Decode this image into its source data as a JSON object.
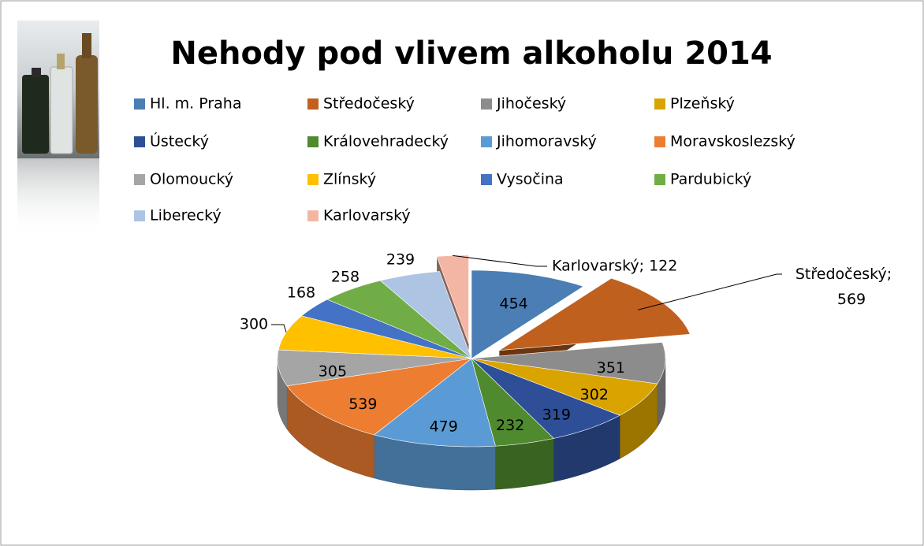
{
  "chart_data": {
    "type": "pie3d",
    "title": "Nehody pod vlivem alkoholu 2014",
    "categories": [
      "Hl. m. Praha",
      "Středočeský",
      "Jihočeský",
      "Plzeňský",
      "Ústecký",
      "Královehradecký",
      "Jihomoravský",
      "Moravskoslezský",
      "Olomoucký",
      "Zlínský",
      "Vysočina",
      "Pardubický",
      "Liberecký",
      "Karlovarský"
    ],
    "values": [
      454,
      569,
      351,
      302,
      319,
      232,
      479,
      539,
      305,
      300,
      168,
      258,
      239,
      122
    ],
    "value_labels": [
      "454",
      "Středočeský; 569",
      "351",
      "302",
      "319",
      "232",
      "479",
      "539",
      "305",
      "300",
      "168",
      "258",
      "239",
      "Karlovarský; 122"
    ],
    "colors": [
      "#4a7eb5",
      "#c0601f",
      "#8c8c8c",
      "#d9a300",
      "#2e4f97",
      "#4f8a2e",
      "#5b9bd5",
      "#ed7d31",
      "#a5a5a5",
      "#ffc000",
      "#4472c4",
      "#70ad47",
      "#adc4e3",
      "#f4b6a4"
    ],
    "exploded": [
      false,
      true,
      false,
      false,
      false,
      false,
      false,
      false,
      false,
      false,
      false,
      false,
      false,
      true
    ],
    "legend": "top"
  }
}
